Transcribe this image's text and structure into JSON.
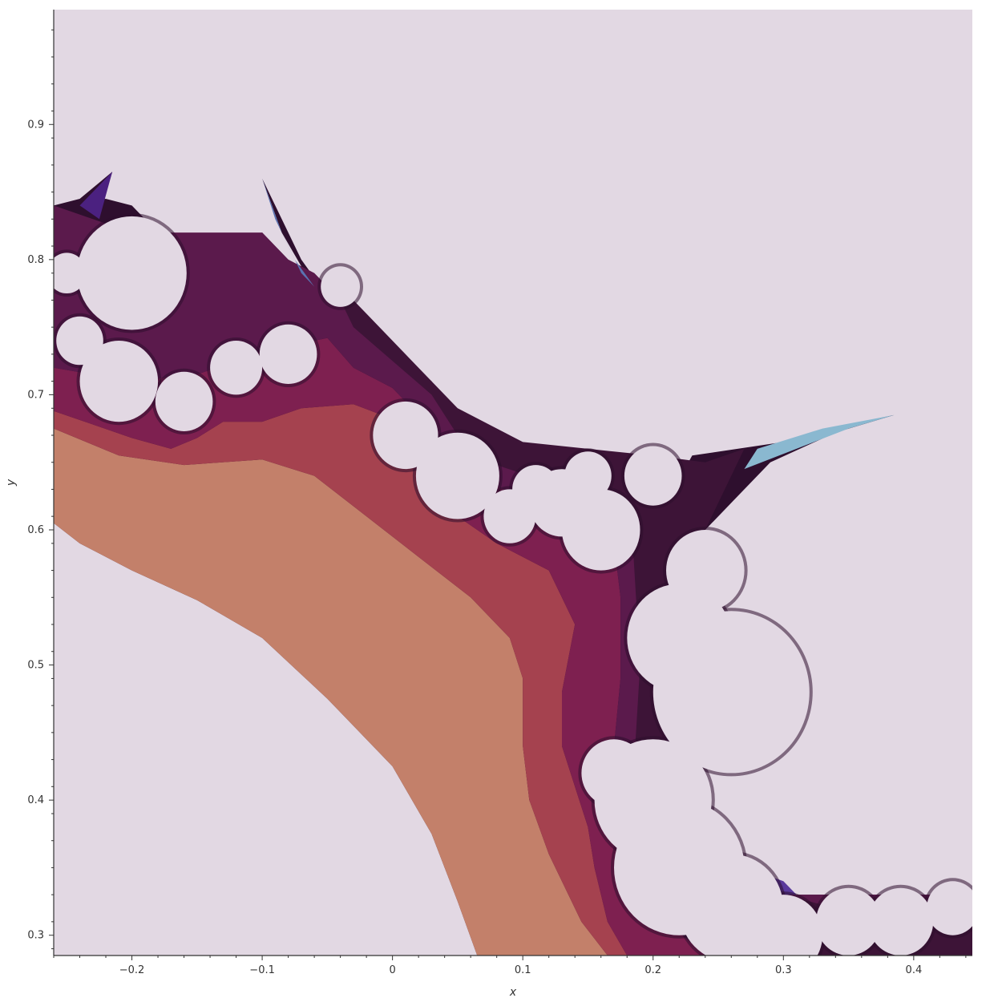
{
  "chart_data": {
    "type": "heatmap",
    "title": "",
    "xlabel": "x",
    "ylabel": "y",
    "xlim": [
      -0.26,
      0.445
    ],
    "ylim": [
      0.285,
      0.985
    ],
    "x_ticks": [
      -0.2,
      -0.1,
      0,
      0.1,
      0.2,
      0.3,
      0.4
    ],
    "x_tick_labels": [
      "−0.2",
      "−0.1",
      "0",
      "0.1",
      "0.2",
      "0.3",
      "0.4"
    ],
    "y_ticks": [
      0.3,
      0.4,
      0.5,
      0.6,
      0.7,
      0.8,
      0.9
    ],
    "y_tick_labels": [
      "0.3",
      "0.4",
      "0.5",
      "0.6",
      "0.7",
      "0.8",
      "0.9"
    ],
    "grid": false,
    "legend": "none",
    "colormap": [
      "#c3806a",
      "#a5424f",
      "#7e2050",
      "#5b1a4c",
      "#3d1437",
      "#3a1a50",
      "#4b2180",
      "#5a3a9c",
      "#5a72b0",
      "#8ab8d0"
    ],
    "background_color": "#e2d8e3",
    "colors": {
      "band_1": "#c3806a",
      "band_2": "#a5424f",
      "band_3": "#7e2050",
      "band_4": "#5b1a4c",
      "band_5": "#3d1437"
    },
    "band_contours": [
      {
        "band": "band_1",
        "points": [
          [
            -0.26,
            0.605
          ],
          [
            -0.24,
            0.59
          ],
          [
            -0.2,
            0.57
          ],
          [
            -0.15,
            0.548
          ],
          [
            -0.1,
            0.52
          ],
          [
            -0.05,
            0.475
          ],
          [
            0,
            0.425
          ],
          [
            0.03,
            0.375
          ],
          [
            0.05,
            0.325
          ],
          [
            0.065,
            0.285
          ],
          [
            0.165,
            0.285
          ],
          [
            0.145,
            0.31
          ],
          [
            0.12,
            0.36
          ],
          [
            0.105,
            0.4
          ],
          [
            0.1,
            0.44
          ],
          [
            0.1,
            0.49
          ],
          [
            0.09,
            0.52
          ],
          [
            0.06,
            0.55
          ],
          [
            0.02,
            0.58
          ],
          [
            -0.02,
            0.61
          ],
          [
            -0.06,
            0.64
          ],
          [
            -0.1,
            0.652
          ],
          [
            -0.16,
            0.648
          ],
          [
            -0.21,
            0.655
          ],
          [
            -0.26,
            0.675
          ]
        ]
      },
      {
        "band": "band_2",
        "points": [
          [
            -0.26,
            0.675
          ],
          [
            -0.21,
            0.655
          ],
          [
            -0.16,
            0.648
          ],
          [
            -0.1,
            0.652
          ],
          [
            -0.06,
            0.64
          ],
          [
            -0.02,
            0.61
          ],
          [
            0.02,
            0.58
          ],
          [
            0.06,
            0.55
          ],
          [
            0.09,
            0.52
          ],
          [
            0.1,
            0.49
          ],
          [
            0.1,
            0.44
          ],
          [
            0.105,
            0.4
          ],
          [
            0.12,
            0.36
          ],
          [
            0.145,
            0.31
          ],
          [
            0.165,
            0.285
          ],
          [
            0.18,
            0.285
          ],
          [
            0.165,
            0.31
          ],
          [
            0.155,
            0.35
          ],
          [
            0.15,
            0.38
          ],
          [
            0.14,
            0.41
          ],
          [
            0.13,
            0.44
          ],
          [
            0.13,
            0.48
          ],
          [
            0.14,
            0.53
          ],
          [
            0.12,
            0.57
          ],
          [
            0.08,
            0.59
          ],
          [
            0.05,
            0.61
          ],
          [
            0.03,
            0.63
          ],
          [
            0.02,
            0.65
          ],
          [
            0,
            0.682
          ],
          [
            -0.03,
            0.693
          ],
          [
            -0.07,
            0.69
          ],
          [
            -0.1,
            0.68
          ],
          [
            -0.13,
            0.68
          ],
          [
            -0.15,
            0.668
          ],
          [
            -0.17,
            0.66
          ],
          [
            -0.2,
            0.668
          ],
          [
            -0.23,
            0.678
          ],
          [
            -0.26,
            0.688
          ]
        ]
      },
      {
        "band": "band_3",
        "points": [
          [
            -0.26,
            0.688
          ],
          [
            -0.23,
            0.678
          ],
          [
            -0.2,
            0.668
          ],
          [
            -0.17,
            0.66
          ],
          [
            -0.15,
            0.668
          ],
          [
            -0.13,
            0.68
          ],
          [
            -0.1,
            0.68
          ],
          [
            -0.07,
            0.69
          ],
          [
            -0.03,
            0.693
          ],
          [
            0,
            0.682
          ],
          [
            0.02,
            0.65
          ],
          [
            0.03,
            0.63
          ],
          [
            0.05,
            0.61
          ],
          [
            0.08,
            0.59
          ],
          [
            0.12,
            0.57
          ],
          [
            0.14,
            0.53
          ],
          [
            0.13,
            0.48
          ],
          [
            0.13,
            0.44
          ],
          [
            0.14,
            0.41
          ],
          [
            0.15,
            0.38
          ],
          [
            0.155,
            0.35
          ],
          [
            0.165,
            0.31
          ],
          [
            0.18,
            0.285
          ],
          [
            0.24,
            0.285
          ],
          [
            0.2,
            0.32
          ],
          [
            0.17,
            0.37
          ],
          [
            0.16,
            0.41
          ],
          [
            0.17,
            0.44
          ],
          [
            0.175,
            0.49
          ],
          [
            0.175,
            0.55
          ],
          [
            0.17,
            0.59
          ],
          [
            0.14,
            0.615
          ],
          [
            0.1,
            0.625
          ],
          [
            0.07,
            0.635
          ],
          [
            0.04,
            0.655
          ],
          [
            0.02,
            0.685
          ],
          [
            0,
            0.705
          ],
          [
            -0.03,
            0.72
          ],
          [
            -0.05,
            0.742
          ],
          [
            -0.07,
            0.738
          ],
          [
            -0.1,
            0.732
          ],
          [
            -0.15,
            0.715
          ],
          [
            -0.2,
            0.71
          ],
          [
            -0.23,
            0.715
          ],
          [
            -0.26,
            0.72
          ]
        ]
      },
      {
        "band": "band_4",
        "points": [
          [
            -0.26,
            0.72
          ],
          [
            -0.23,
            0.715
          ],
          [
            -0.2,
            0.71
          ],
          [
            -0.15,
            0.715
          ],
          [
            -0.1,
            0.732
          ],
          [
            -0.07,
            0.738
          ],
          [
            -0.05,
            0.742
          ],
          [
            -0.03,
            0.72
          ],
          [
            0,
            0.705
          ],
          [
            0.02,
            0.685
          ],
          [
            0.04,
            0.655
          ],
          [
            0.07,
            0.635
          ],
          [
            0.1,
            0.625
          ],
          [
            0.14,
            0.615
          ],
          [
            0.17,
            0.59
          ],
          [
            0.175,
            0.55
          ],
          [
            0.175,
            0.49
          ],
          [
            0.17,
            0.44
          ],
          [
            0.16,
            0.41
          ],
          [
            0.17,
            0.37
          ],
          [
            0.2,
            0.32
          ],
          [
            0.24,
            0.285
          ],
          [
            0.445,
            0.285
          ],
          [
            0.445,
            0.33
          ],
          [
            0.38,
            0.33
          ],
          [
            0.3,
            0.33
          ],
          [
            0.24,
            0.38
          ],
          [
            0.22,
            0.43
          ],
          [
            0.2,
            0.5
          ],
          [
            0.2,
            0.56
          ],
          [
            0.19,
            0.59
          ],
          [
            0.15,
            0.635
          ],
          [
            0.11,
            0.645
          ],
          [
            0.08,
            0.66
          ],
          [
            0.05,
            0.68
          ],
          [
            0.03,
            0.71
          ],
          [
            0,
            0.735
          ],
          [
            -0.04,
            0.77
          ],
          [
            -0.06,
            0.79
          ],
          [
            -0.08,
            0.8
          ],
          [
            -0.1,
            0.82
          ],
          [
            -0.2,
            0.82
          ],
          [
            -0.26,
            0.84
          ]
        ]
      },
      {
        "band": "band_5",
        "points": [
          [
            -0.05,
            0.79
          ],
          [
            -0.02,
            0.76
          ],
          [
            0.02,
            0.72
          ],
          [
            0.05,
            0.69
          ],
          [
            0.1,
            0.665
          ],
          [
            0.15,
            0.66
          ],
          [
            0.2,
            0.655
          ],
          [
            0.24,
            0.65
          ],
          [
            0.27,
            0.66
          ],
          [
            0.24,
            0.6
          ],
          [
            0.22,
            0.54
          ],
          [
            0.215,
            0.48
          ],
          [
            0.225,
            0.43
          ],
          [
            0.26,
            0.36
          ],
          [
            0.3,
            0.33
          ],
          [
            0.38,
            0.31
          ],
          [
            0.445,
            0.31
          ],
          [
            0.445,
            0.285
          ],
          [
            0.24,
            0.285
          ],
          [
            0.19,
            0.33
          ],
          [
            0.175,
            0.37
          ],
          [
            0.185,
            0.42
          ],
          [
            0.19,
            0.5
          ],
          [
            0.185,
            0.58
          ],
          [
            0.16,
            0.62
          ],
          [
            0.12,
            0.635
          ],
          [
            0.08,
            0.648
          ],
          [
            0.05,
            0.67
          ],
          [
            0.03,
            0.7
          ],
          [
            0,
            0.725
          ],
          [
            -0.03,
            0.75
          ]
        ]
      }
    ],
    "boundary_contours": [
      [
        [
          -0.26,
          0.84
        ],
        [
          -0.22,
          0.845
        ],
        [
          -0.2,
          0.84
        ],
        [
          -0.18,
          0.82
        ],
        [
          -0.13,
          0.8
        ],
        [
          -0.1,
          0.82
        ],
        [
          -0.08,
          0.8
        ],
        [
          -0.06,
          0.79
        ],
        [
          -0.04,
          0.77
        ],
        [
          0,
          0.735
        ],
        [
          0.03,
          0.71
        ],
        [
          0.05,
          0.68
        ],
        [
          0.08,
          0.66
        ],
        [
          0.11,
          0.645
        ],
        [
          0.15,
          0.635
        ],
        [
          0.19,
          0.59
        ],
        [
          0.2,
          0.56
        ],
        [
          0.2,
          0.5
        ],
        [
          0.22,
          0.43
        ],
        [
          0.24,
          0.38
        ],
        [
          0.3,
          0.33
        ],
        [
          0.38,
          0.33
        ],
        [
          0.445,
          0.33
        ],
        [
          0.445,
          0.285
        ],
        [
          0.065,
          0.285
        ],
        [
          0.05,
          0.325
        ],
        [
          0.03,
          0.375
        ],
        [
          0,
          0.425
        ],
        [
          -0.05,
          0.475
        ],
        [
          -0.1,
          0.52
        ],
        [
          -0.15,
          0.548
        ],
        [
          -0.2,
          0.57
        ],
        [
          -0.24,
          0.59
        ],
        [
          -0.26,
          0.605
        ]
      ],
      [
        [
          -0.26,
          0.84
        ],
        [
          -0.24,
          0.845
        ],
        [
          -0.215,
          0.865
        ],
        [
          -0.235,
          0.8
        ],
        [
          -0.25,
          0.76
        ],
        [
          -0.26,
          0.72
        ]
      ],
      [
        [
          -0.1,
          0.86
        ],
        [
          -0.085,
          0.82
        ],
        [
          -0.07,
          0.795
        ],
        [
          -0.055,
          0.77
        ],
        [
          -0.03,
          0.74
        ],
        [
          0,
          0.72
        ],
        [
          0.03,
          0.695
        ],
        [
          -0.01,
          0.72
        ],
        [
          -0.04,
          0.76
        ],
        [
          -0.07,
          0.8
        ]
      ],
      [
        [
          0.23,
          0.655
        ],
        [
          0.3,
          0.665
        ],
        [
          0.35,
          0.678
        ],
        [
          0.385,
          0.685
        ],
        [
          0.34,
          0.672
        ],
        [
          0.29,
          0.65
        ],
        [
          0.26,
          0.62
        ],
        [
          0.22,
          0.58
        ],
        [
          0.2,
          0.58
        ],
        [
          0.21,
          0.62
        ]
      ],
      [
        [
          0.205,
          0.43
        ],
        [
          0.21,
          0.47
        ],
        [
          0.22,
          0.42
        ],
        [
          0.22,
          0.4
        ]
      ],
      [
        [
          0.26,
          0.35
        ],
        [
          0.31,
          0.33
        ],
        [
          0.29,
          0.34
        ]
      ]
    ],
    "lobes": [
      [
        -0.2,
        0.79,
        0.042
      ],
      [
        -0.21,
        0.71,
        0.03
      ],
      [
        -0.16,
        0.695,
        0.022
      ],
      [
        -0.12,
        0.72,
        0.02
      ],
      [
        -0.08,
        0.73,
        0.022
      ],
      [
        0.01,
        0.67,
        0.025
      ],
      [
        0.05,
        0.64,
        0.032
      ],
      [
        0.09,
        0.61,
        0.02
      ],
      [
        0.11,
        0.63,
        0.018
      ],
      [
        0.15,
        0.64,
        0.018
      ],
      [
        0.2,
        0.64,
        0.022
      ],
      [
        0.24,
        0.57,
        0.03
      ],
      [
        0.22,
        0.52,
        0.04
      ],
      [
        0.26,
        0.48,
        0.06
      ],
      [
        0.2,
        0.4,
        0.045
      ],
      [
        0.17,
        0.42,
        0.025
      ],
      [
        0.22,
        0.35,
        0.05
      ],
      [
        0.26,
        0.32,
        0.04
      ],
      [
        0.3,
        0.3,
        0.03
      ],
      [
        0.35,
        0.31,
        0.025
      ],
      [
        0.39,
        0.31,
        0.025
      ],
      [
        0.43,
        0.32,
        0.02
      ],
      [
        0.16,
        0.6,
        0.03
      ],
      [
        0.13,
        0.62,
        0.025
      ],
      [
        -0.04,
        0.78,
        0.015
      ],
      [
        -0.24,
        0.74,
        0.018
      ],
      [
        -0.25,
        0.79,
        0.015
      ]
    ],
    "spikes": [
      {
        "points": [
          [
            -0.1,
            0.86
          ],
          [
            -0.085,
            0.82
          ],
          [
            -0.07,
            0.79
          ],
          [
            -0.06,
            0.78
          ],
          [
            -0.075,
            0.8
          ],
          [
            -0.09,
            0.83
          ]
        ],
        "color": "#5a72b0"
      },
      {
        "points": [
          [
            -0.215,
            0.865
          ],
          [
            -0.24,
            0.84
          ],
          [
            -0.225,
            0.83
          ]
        ],
        "color": "#4b2180"
      },
      {
        "points": [
          [
            0.385,
            0.685
          ],
          [
            0.33,
            0.675
          ],
          [
            0.28,
            0.66
          ],
          [
            0.27,
            0.645
          ],
          [
            0.31,
            0.66
          ],
          [
            0.35,
            0.675
          ]
        ],
        "color": "#8ab8d0"
      },
      {
        "points": [
          [
            0.222,
            0.4
          ],
          [
            0.212,
            0.44
          ],
          [
            0.205,
            0.47
          ],
          [
            0.215,
            0.43
          ]
        ],
        "color": "#5a72b0"
      },
      {
        "points": [
          [
            0.27,
            0.35
          ],
          [
            0.3,
            0.34
          ],
          [
            0.31,
            0.33
          ],
          [
            0.29,
            0.33
          ]
        ],
        "color": "#5a3a9c"
      }
    ]
  }
}
